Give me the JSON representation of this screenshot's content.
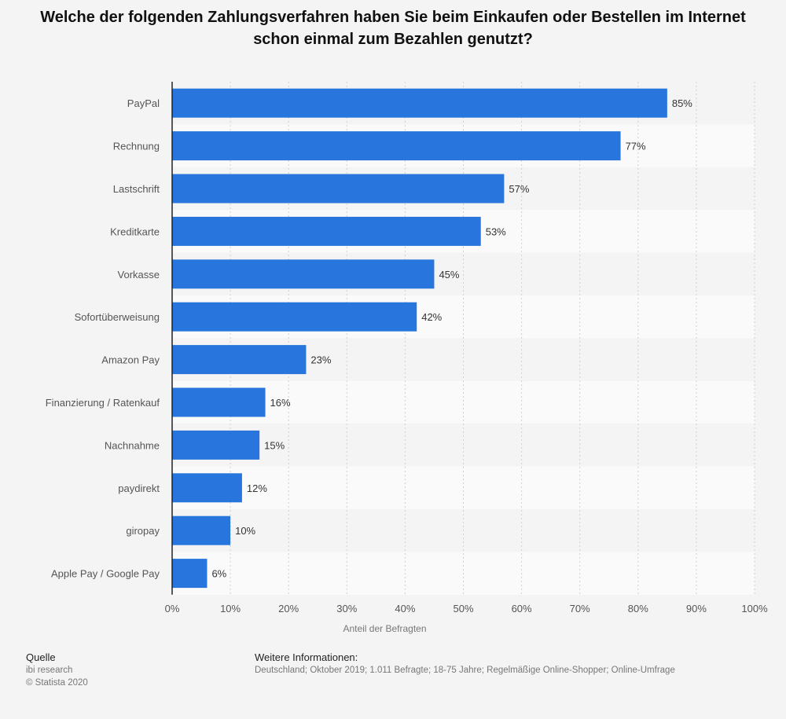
{
  "chart_data": {
    "type": "bar",
    "orientation": "horizontal",
    "title": "Welche der folgenden Zahlungsverfahren haben Sie beim Einkaufen oder Bestellen im Internet schon einmal zum Bezahlen genutzt?",
    "xlabel": "Anteil der Befragten",
    "ylabel": "",
    "categories": [
      "PayPal",
      "Rechnung",
      "Lastschrift",
      "Kreditkarte",
      "Vorkasse",
      "Sofortüberweisung",
      "Amazon Pay",
      "Finanzierung / Ratenkauf",
      "Nachnahme",
      "paydirekt",
      "giropay",
      "Apple Pay / Google Pay"
    ],
    "values": [
      85,
      77,
      57,
      53,
      45,
      42,
      23,
      16,
      15,
      12,
      10,
      6
    ],
    "value_labels": [
      "85%",
      "77%",
      "57%",
      "53%",
      "45%",
      "42%",
      "23%",
      "16%",
      "15%",
      "12%",
      "10%",
      "6%"
    ],
    "xlim": [
      0,
      100
    ],
    "ticks": [
      0,
      10,
      20,
      30,
      40,
      50,
      60,
      70,
      80,
      90,
      100
    ],
    "tick_labels": [
      "0%",
      "10%",
      "20%",
      "30%",
      "40%",
      "50%",
      "60%",
      "70%",
      "80%",
      "90%",
      "100%"
    ],
    "grid": true,
    "bar_color": "#2876dd"
  },
  "footer": {
    "source_title": "Quelle",
    "source_name": "ibi research",
    "copyright": "© Statista 2020",
    "info_title": "Weitere Informationen:",
    "info_text": "Deutschland; Oktober 2019; 1.011 Befragte; 18-75 Jahre; Regelmäßige Online-Shopper; Online-Umfrage"
  }
}
